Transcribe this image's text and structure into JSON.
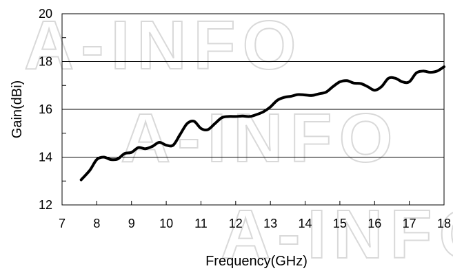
{
  "chart_data": {
    "type": "line",
    "xlabel": "Frequency(GHz)",
    "ylabel": "Gain(dBi)",
    "xlim": [
      7,
      18
    ],
    "ylim": [
      12,
      20
    ],
    "xticks": [
      7,
      8,
      9,
      10,
      11,
      12,
      13,
      14,
      15,
      16,
      17,
      18
    ],
    "yticks": [
      12,
      14,
      16,
      18,
      20
    ],
    "grid": "horizontal",
    "line_color": "#000000",
    "watermark": "A-INFO",
    "series": [
      {
        "x": [
          7.55,
          7.8,
          8.0,
          8.2,
          8.4,
          8.6,
          8.8,
          9.0,
          9.2,
          9.4,
          9.6,
          9.8,
          10.0,
          10.2,
          10.4,
          10.6,
          10.8,
          11.0,
          11.2,
          11.4,
          11.6,
          11.8,
          12.0,
          12.2,
          12.4,
          12.6,
          12.8,
          13.0,
          13.2,
          13.4,
          13.6,
          13.8,
          14.0,
          14.2,
          14.4,
          14.6,
          14.8,
          15.0,
          15.2,
          15.4,
          15.6,
          15.8,
          16.0,
          16.2,
          16.4,
          16.6,
          16.8,
          17.0,
          17.2,
          17.4,
          17.6,
          17.8,
          18.0
        ],
        "values": [
          13.05,
          13.45,
          13.9,
          14.0,
          13.9,
          13.92,
          14.15,
          14.2,
          14.4,
          14.35,
          14.45,
          14.62,
          14.5,
          14.5,
          14.95,
          15.4,
          15.5,
          15.2,
          15.15,
          15.4,
          15.65,
          15.7,
          15.7,
          15.72,
          15.7,
          15.78,
          15.9,
          16.1,
          16.38,
          16.5,
          16.55,
          16.62,
          16.6,
          16.58,
          16.65,
          16.72,
          16.95,
          17.15,
          17.2,
          17.1,
          17.08,
          16.95,
          16.8,
          16.95,
          17.3,
          17.3,
          17.15,
          17.15,
          17.52,
          17.6,
          17.55,
          17.6,
          17.78
        ]
      }
    ]
  }
}
